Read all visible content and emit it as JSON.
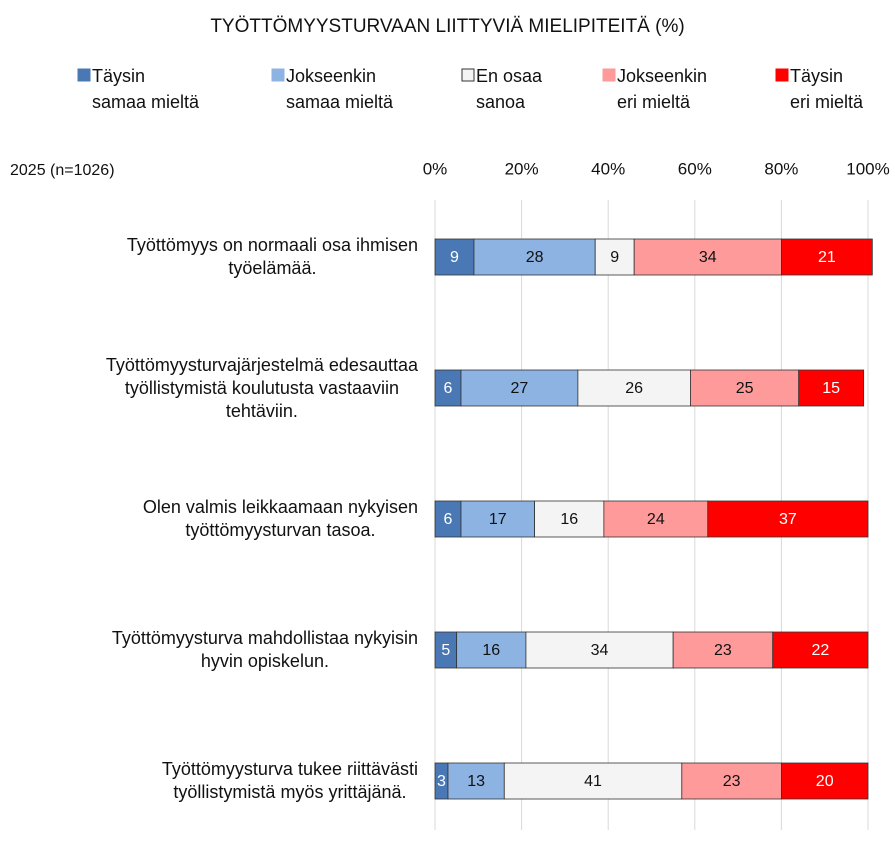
{
  "chart_data": {
    "type": "stacked_barh",
    "title": "TYÖTTÖMYYSTURVAAN LIITTYVIÄ MIELIPITEITÄ (%)",
    "note": "2025 (n=1026)",
    "categories": [
      "Työttömyys on normaali osa ihmisen\ntyöelämää.",
      "Työttömyysturvajärjestelmä edesauttaa\ntyöllistymistä koulutusta vastaaviin\ntehtäviin.",
      "Olen valmis leikkaamaan nykyisen\ntyöttömyysturvan tasoa.",
      "Työttömyysturva mahdollistaa nykyisin\nhyvin opiskelun.",
      "Työttömyysturva tukee riittävästi\ntyöllistymistä myös yrittäjänä."
    ],
    "series": [
      {
        "name": "Täysin\nsamaa mieltä",
        "color": "#4a78b5",
        "values": [
          9,
          6,
          6,
          5,
          3
        ]
      },
      {
        "name": "Jokseenkin\nsamaa mieltä",
        "color": "#8db3e2",
        "values": [
          28,
          27,
          17,
          16,
          13
        ]
      },
      {
        "name": "En osaa\nsanoa",
        "color": "#f4f4f4",
        "values": [
          9,
          26,
          16,
          34,
          41
        ]
      },
      {
        "name": "Jokseenkin\neri mieltä",
        "color": "#ff9a9a",
        "values": [
          34,
          25,
          24,
          23,
          23
        ]
      },
      {
        "name": "Täysin\neri mieltä",
        "color": "#ff0000",
        "values": [
          21,
          15,
          37,
          22,
          20
        ]
      }
    ],
    "xlim": [
      0,
      100
    ],
    "xticks": [
      {
        "value": 0,
        "label": "0%"
      },
      {
        "value": 20,
        "label": "20%"
      },
      {
        "value": 40,
        "label": "40%"
      },
      {
        "value": 60,
        "label": "60%"
      },
      {
        "value": 80,
        "label": "80%"
      },
      {
        "value": 100,
        "label": "100%"
      }
    ],
    "grid": true,
    "legend": "top"
  }
}
